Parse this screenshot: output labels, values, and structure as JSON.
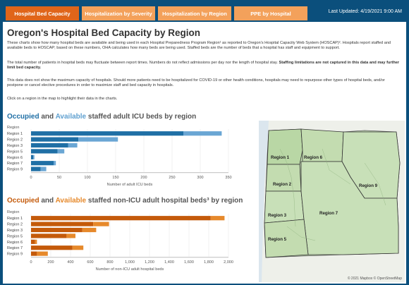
{
  "tabs": [
    {
      "label": "Hospital Bed Capacity",
      "active": true
    },
    {
      "label": "Hospitalization by Severity",
      "active": false
    },
    {
      "label": "Hospitalization by Region",
      "active": false
    },
    {
      "label": "PPE by Hospital",
      "active": false
    }
  ],
  "last_updated": "Last Updated: 4/19/2021 9:00 AM",
  "page": {
    "title": "Oregon's Hospital Bed Capacity by Region",
    "intro": "These charts show how many hospital beds are available and being used in each Hospital Preparedness Program Region¹ as reported to Oregon's Hospital Capacity Web System (HOSCAP)². Hospitals report staffed and available beds to HOSCAP; based on these numbers, OHA calculates how many beds are being used. Staffed beds are the number of beds that a hospital has staff and equipment to support.",
    "fluctuate": "The total number of patients in hospital beds may fluctuate between report times. Numbers do not reflect admissions per day nor the length of hospital stay.",
    "fluctuate_bold": "Staffing limitations are not captured in this data and may further limit bed capacity.",
    "max_capacity": "This data does not show the maximum capacity of hospitals. Should more patients need to be hospitalized for COVID-19 or other health conditions, hospitals may need to repurpose other types of hospital beds, and/or postpone or cancel elective procedures in order to maximize staff and bed capacity in hospitals.",
    "click_hint": "Click on a region in the map to highlight their data in the charts."
  },
  "icu_section": {
    "occupied": "Occupied",
    "and": "and",
    "available": "Available",
    "rest": "staffed adult ICU beds by region"
  },
  "nonicu_section": {
    "occupied": "Occupied",
    "and": "and",
    "available": "Available",
    "rest": "staffed non-ICU adult hospital beds³ by region"
  },
  "colors": {
    "icu_occupied": "#1f6fa5",
    "icu_available": "#6aa6d4",
    "nonicu_occupied": "#c45a0a",
    "nonicu_available": "#e6892b"
  },
  "chart_data": [
    {
      "type": "bar",
      "orientation": "horizontal",
      "stacked": true,
      "title": "Occupied and Available staffed adult ICU beds by region",
      "ylabel": "Region",
      "xlabel": "Number of adult ICU beds",
      "categories": [
        "Region 1",
        "Region 2",
        "Region 3",
        "Region 5",
        "Region 6",
        "Region 7",
        "Region 9"
      ],
      "series": [
        {
          "name": "Occupied",
          "values": [
            270,
            84,
            66,
            47,
            4,
            40,
            17
          ]
        },
        {
          "name": "Available",
          "values": [
            68,
            70,
            16,
            12,
            2,
            4,
            10
          ]
        }
      ],
      "xlim": [
        0,
        350
      ],
      "xticks": [
        0,
        50,
        100,
        150,
        200,
        250,
        300,
        350
      ]
    },
    {
      "type": "bar",
      "orientation": "horizontal",
      "stacked": true,
      "title": "Occupied and Available staffed non-ICU adult hospital beds³ by region",
      "ylabel": "Region",
      "xlabel": "Number of non-ICU adult hospital beds",
      "categories": [
        "Region 1",
        "Region 2",
        "Region 3",
        "Region 5",
        "Region 6",
        "Region 7",
        "Region 9"
      ],
      "series": [
        {
          "name": "Occupied",
          "values": [
            1820,
            630,
            520,
            360,
            40,
            420,
            60
          ]
        },
        {
          "name": "Available",
          "values": [
            140,
            160,
            140,
            90,
            20,
            110,
            110
          ]
        }
      ],
      "xlim": [
        0,
        2000
      ],
      "xticks": [
        0,
        200,
        400,
        600,
        800,
        1000,
        1200,
        1400,
        1600,
        1800,
        2000
      ]
    }
  ],
  "map": {
    "regions": [
      "Region 1",
      "Region 6",
      "Region 2",
      "Region 9",
      "Region 3",
      "Region 7",
      "Region 5"
    ],
    "credit": "© 2021 Mapbox  © OpenStreetMap"
  }
}
